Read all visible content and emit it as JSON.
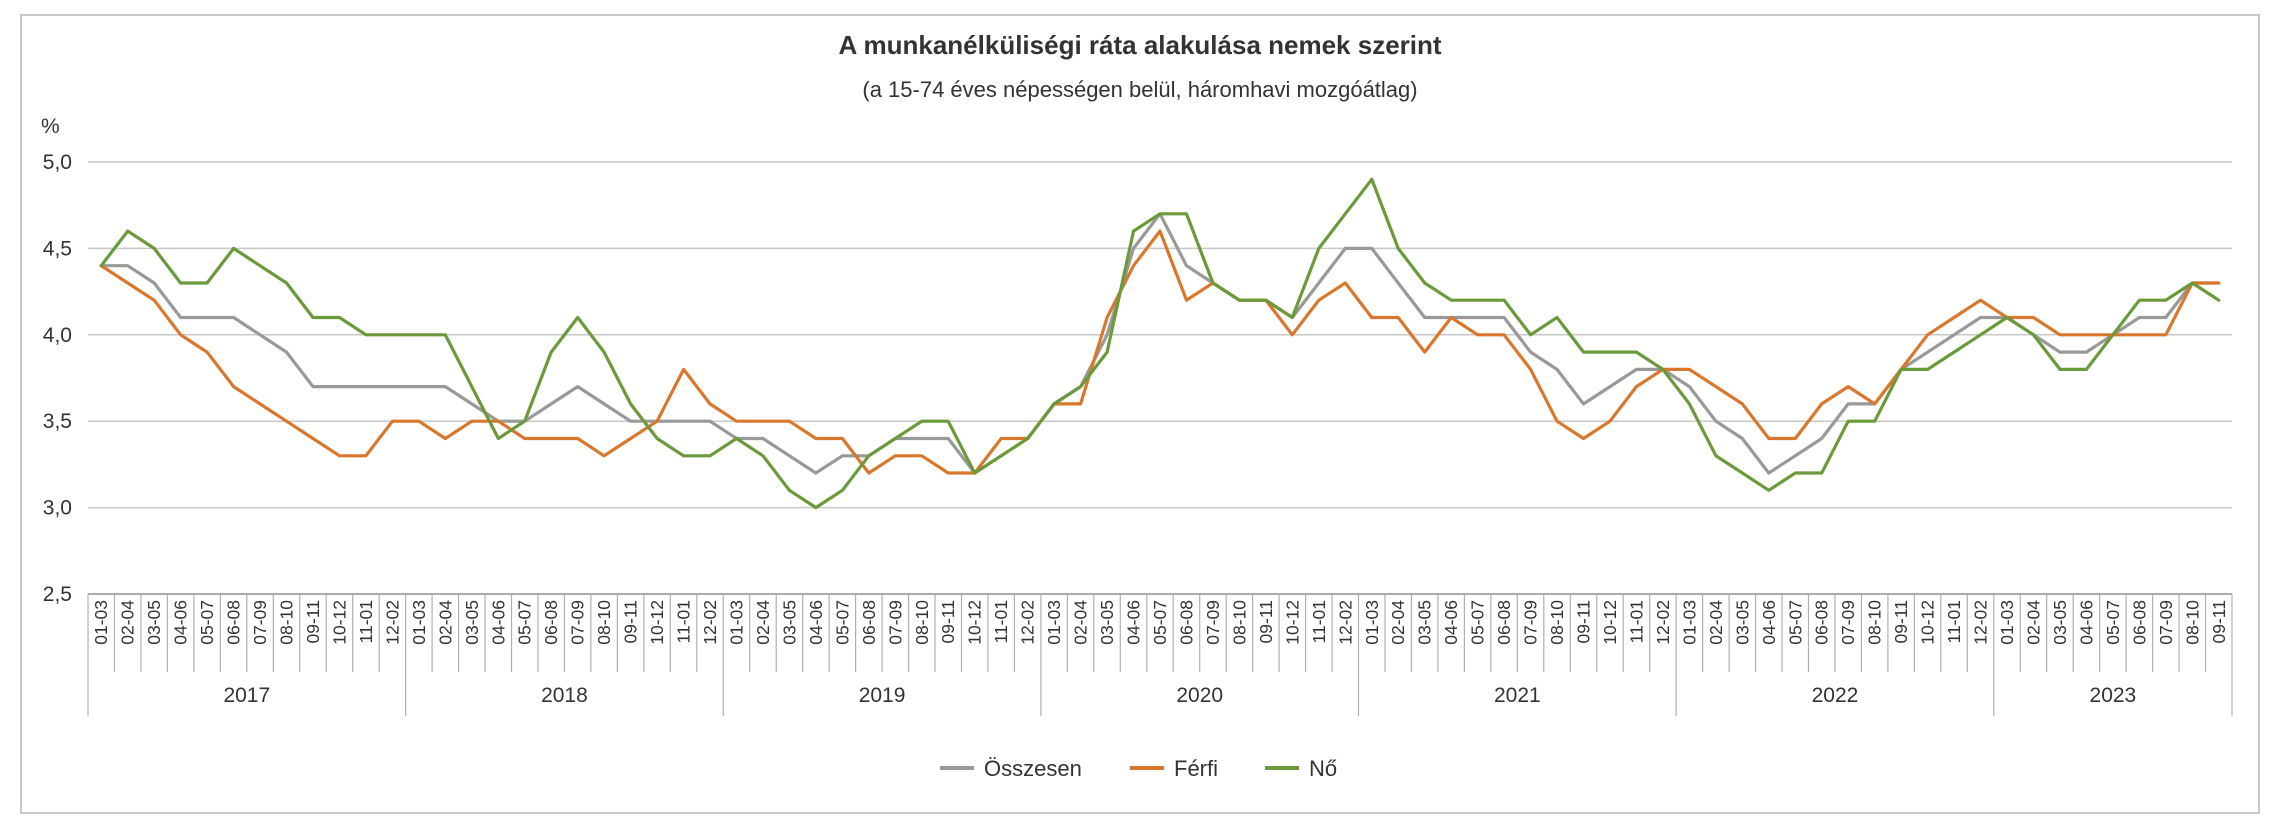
{
  "chart_data": {
    "type": "line",
    "title": "A munkanélküliségi ráta alakulása nemek szerint",
    "subtitle": "(a 15-74 éves népességen belül, háromhavi mozgóátlag)",
    "ylabel": "%",
    "ylim": [
      2.5,
      5.0
    ],
    "yticks": [
      "5,0",
      "4,5",
      "4,0",
      "3,5",
      "3,0",
      "2,5"
    ],
    "ytick_values": [
      5.0,
      4.5,
      4.0,
      3.5,
      3.0,
      2.5
    ],
    "grid": true,
    "legend_position": "bottom",
    "years": [
      "2017",
      "2018",
      "2019",
      "2020",
      "2021",
      "2022",
      "2023"
    ],
    "year_months": [
      "01-03",
      "02-04",
      "03-05",
      "04-06",
      "05-07",
      "06-08",
      "07-09",
      "08-10",
      "09-11",
      "10-12",
      "11-01",
      "12-02"
    ],
    "last_year_months": [
      "01-03",
      "02-04",
      "03-05",
      "04-06",
      "05-07",
      "06-08",
      "07-09",
      "08-10",
      "09-11"
    ],
    "series": [
      {
        "name": "Összesen",
        "color": "#999999",
        "values": [
          4.4,
          4.4,
          4.3,
          4.1,
          4.1,
          4.1,
          4.0,
          3.9,
          3.7,
          3.7,
          3.7,
          3.7,
          3.7,
          3.7,
          3.6,
          3.5,
          3.5,
          3.6,
          3.7,
          3.6,
          3.5,
          3.5,
          3.5,
          3.5,
          3.4,
          3.4,
          3.3,
          3.2,
          3.3,
          3.3,
          3.4,
          3.4,
          3.4,
          3.2,
          3.3,
          3.4,
          3.6,
          3.7,
          4.0,
          4.5,
          4.7,
          4.4,
          4.3,
          4.2,
          4.2,
          4.1,
          4.3,
          4.5,
          4.5,
          4.3,
          4.1,
          4.1,
          4.1,
          4.1,
          3.9,
          3.8,
          3.6,
          3.7,
          3.8,
          3.8,
          3.7,
          3.5,
          3.4,
          3.2,
          3.3,
          3.4,
          3.6,
          3.6,
          3.8,
          3.9,
          4.0,
          4.1,
          4.1,
          4.0,
          3.9,
          3.9,
          4.0,
          4.1,
          4.1,
          4.3,
          4.3
        ]
      },
      {
        "name": "Férfi",
        "color": "#d9782d",
        "values": [
          4.4,
          4.3,
          4.2,
          4.0,
          3.9,
          3.7,
          3.6,
          3.5,
          3.4,
          3.3,
          3.3,
          3.5,
          3.5,
          3.4,
          3.5,
          3.5,
          3.4,
          3.4,
          3.4,
          3.3,
          3.4,
          3.5,
          3.8,
          3.6,
          3.5,
          3.5,
          3.5,
          3.4,
          3.4,
          3.2,
          3.3,
          3.3,
          3.2,
          3.2,
          3.4,
          3.4,
          3.6,
          3.6,
          4.1,
          4.4,
          4.6,
          4.2,
          4.3,
          4.2,
          4.2,
          4.0,
          4.2,
          4.3,
          4.1,
          4.1,
          3.9,
          4.1,
          4.0,
          4.0,
          3.8,
          3.5,
          3.4,
          3.5,
          3.7,
          3.8,
          3.8,
          3.7,
          3.6,
          3.4,
          3.4,
          3.6,
          3.7,
          3.6,
          3.8,
          4.0,
          4.1,
          4.2,
          4.1,
          4.1,
          4.0,
          4.0,
          4.0,
          4.0,
          4.0,
          4.3,
          4.3
        ]
      },
      {
        "name": "Nő",
        "color": "#6a9a3a",
        "values": [
          4.4,
          4.6,
          4.5,
          4.3,
          4.3,
          4.5,
          4.4,
          4.3,
          4.1,
          4.1,
          4.0,
          4.0,
          4.0,
          4.0,
          3.7,
          3.4,
          3.5,
          3.9,
          4.1,
          3.9,
          3.6,
          3.4,
          3.3,
          3.3,
          3.4,
          3.3,
          3.1,
          3.0,
          3.1,
          3.3,
          3.4,
          3.5,
          3.5,
          3.2,
          3.3,
          3.4,
          3.6,
          3.7,
          3.9,
          4.6,
          4.7,
          4.7,
          4.3,
          4.2,
          4.2,
          4.1,
          4.5,
          4.7,
          4.9,
          4.5,
          4.3,
          4.2,
          4.2,
          4.2,
          4.0,
          4.1,
          3.9,
          3.9,
          3.9,
          3.8,
          3.6,
          3.3,
          3.2,
          3.1,
          3.2,
          3.2,
          3.5,
          3.5,
          3.8,
          3.8,
          3.9,
          4.0,
          4.1,
          4.0,
          3.8,
          3.8,
          4.0,
          4.2,
          4.2,
          4.3,
          4.2
        ]
      }
    ]
  }
}
